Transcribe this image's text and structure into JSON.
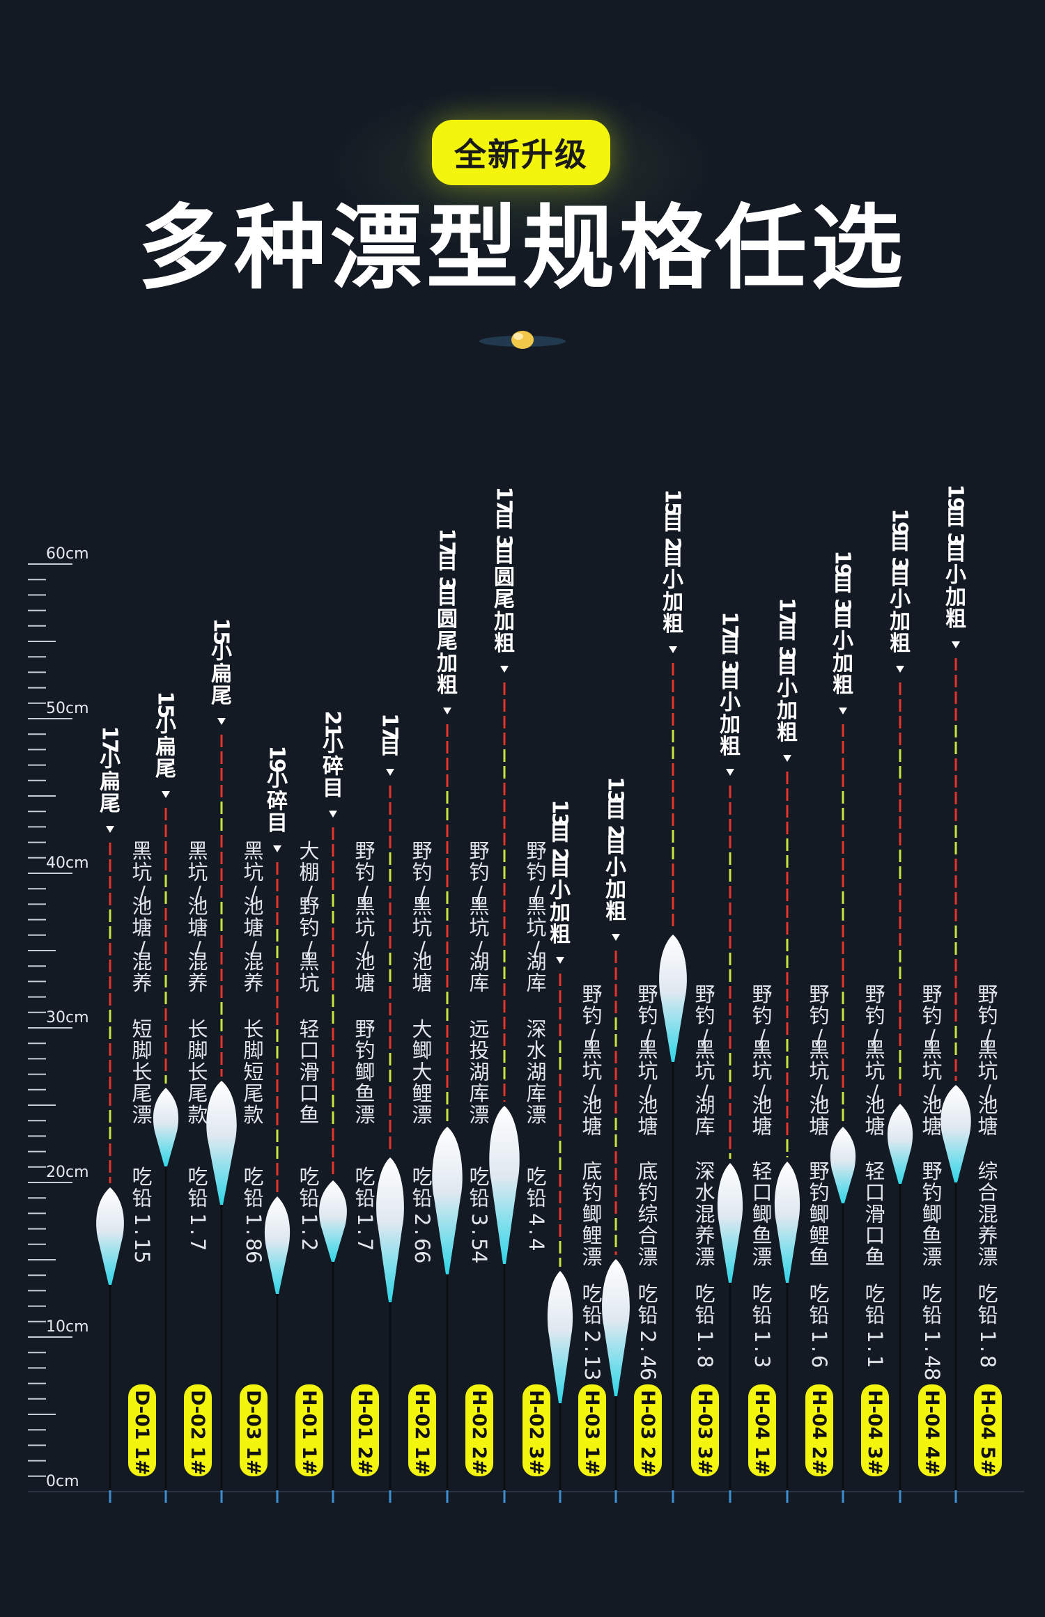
{
  "badge": "全新升级",
  "headline": "多种漂型规格任选",
  "gem_icon": "floating-gem-icon",
  "colors": {
    "background": "#131a24",
    "badge": "#f4f50c",
    "tip_red": "#e8322a",
    "tip_green": "#c8e63c",
    "body_teal": "#2fd6e8"
  },
  "ruler": {
    "labels": [
      "60cm",
      "50cm",
      "40cm",
      "30cm",
      "20cm",
      "10cm",
      "0cm"
    ]
  },
  "floats": [
    {
      "spec": "17小扁尾",
      "uses": "黑坑/池塘/混养",
      "style": "短脚长尾漂",
      "lead": "吃铅1.15",
      "code": "D-01 1#"
    },
    {
      "spec": "15小扁尾",
      "uses": "黑坑/池塘/混养",
      "style": "长脚长尾款",
      "lead": "吃铅1.7",
      "code": "D-02 1#"
    },
    {
      "spec": "15小扁尾",
      "uses": "黑坑/池塘/混养",
      "style": "长脚短尾款",
      "lead": "吃铅1.86",
      "code": "D-03 1#"
    },
    {
      "spec": "19小碎目",
      "uses": "大棚/野钓/黑坑",
      "style": "轻口滑口鱼",
      "lead": "吃铅1.2",
      "code": "H-01 1#"
    },
    {
      "spec": "21小碎目",
      "uses": "野钓/黑坑/池塘",
      "style": "野钓鲫鱼漂",
      "lead": "吃铅1.7",
      "code": "H-01 2#"
    },
    {
      "spec": "17目",
      "uses": "野钓/黑坑/池塘",
      "style": "大鲫大鲤漂",
      "lead": "吃铅2.66",
      "code": "H-02 1#"
    },
    {
      "spec": "17目3目圆尾加粗",
      "uses": "野钓/黑坑/湖库",
      "style": "远投湖库漂",
      "lead": "吃铅3.54",
      "code": "H-02 2#"
    },
    {
      "spec": "17目3目圆尾加粗",
      "uses": "野钓/黑坑/湖库",
      "style": "深水湖库漂",
      "lead": "吃铅4.4",
      "code": "H-02 3#"
    },
    {
      "spec": "13目2目小加粗",
      "uses": "野钓/黑坑/池塘",
      "style": "底钓鲫鲤漂",
      "lead": "吃铅2.13",
      "code": "H-03 1#"
    },
    {
      "spec": "13目2目小加粗",
      "uses": "野钓/黑坑/池塘",
      "style": "底钓综合漂",
      "lead": "吃铅2.46",
      "code": "H-03 2#"
    },
    {
      "spec": "15目2目小加粗",
      "uses": "野钓/黑坑/湖库",
      "style": "深水混养漂",
      "lead": "吃铅1.8",
      "code": "H-03 3#"
    },
    {
      "spec": "17目3目小加粗",
      "uses": "野钓/黑坑/池塘",
      "style": "轻口鲫鱼漂",
      "lead": "吃铅1.3",
      "code": "H-04 1#"
    },
    {
      "spec": "17目3目小加粗",
      "uses": "野钓/黑坑/池塘",
      "style": "野钓鲫鲤鱼",
      "lead": "吃铅1.6",
      "code": "H-04 2#"
    },
    {
      "spec": "19目3目小加粗",
      "uses": "野钓/黑坑/池塘",
      "style": "轻口滑口鱼",
      "lead": "吃铅1.1",
      "code": "H-04 3#"
    },
    {
      "spec": "19目3目小加粗",
      "uses": "野钓/黑坑/池塘",
      "style": "野钓鲫鱼漂",
      "lead": "吃铅1.48",
      "code": "H-04 4#"
    },
    {
      "spec": "19目3目小加粗",
      "uses": "野钓/黑坑/池塘",
      "style": "综合混养漂",
      "lead": "吃铅1.8",
      "code": "H-04 5#"
    }
  ]
}
